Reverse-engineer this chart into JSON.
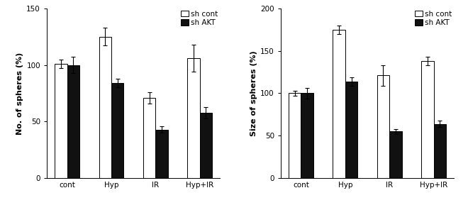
{
  "chart1": {
    "ylabel": "No. of spheres (%)",
    "categories": [
      "cont",
      "Hyp",
      "IR",
      "Hyp+IR"
    ],
    "sh_cont_values": [
      101,
      125,
      71,
      106
    ],
    "sh_akt_values": [
      100,
      84,
      43,
      58
    ],
    "sh_cont_errors": [
      4,
      8,
      5,
      12
    ],
    "sh_akt_errors": [
      7,
      4,
      3,
      5
    ],
    "ylim": [
      0,
      150
    ],
    "yticks": [
      0,
      50,
      100,
      150
    ]
  },
  "chart2": {
    "ylabel": "Size of spheres (%)",
    "categories": [
      "cont",
      "Hyp",
      "IR",
      "Hyp+IR"
    ],
    "sh_cont_values": [
      100,
      175,
      121,
      138
    ],
    "sh_akt_values": [
      100,
      114,
      55,
      64
    ],
    "sh_cont_errors": [
      3,
      5,
      12,
      5
    ],
    "sh_akt_errors": [
      6,
      5,
      3,
      4
    ],
    "ylim": [
      0,
      200
    ],
    "yticks": [
      0,
      50,
      100,
      150,
      200
    ]
  },
  "legend_labels": [
    "sh cont",
    "sh AKT"
  ],
  "bar_width": 0.28,
  "color_sh_cont": "#ffffff",
  "color_sh_akt": "#111111",
  "edge_color": "#000000",
  "font_size": 7.5,
  "tick_font_size": 7.5,
  "ylabel_font_size": 8.0
}
